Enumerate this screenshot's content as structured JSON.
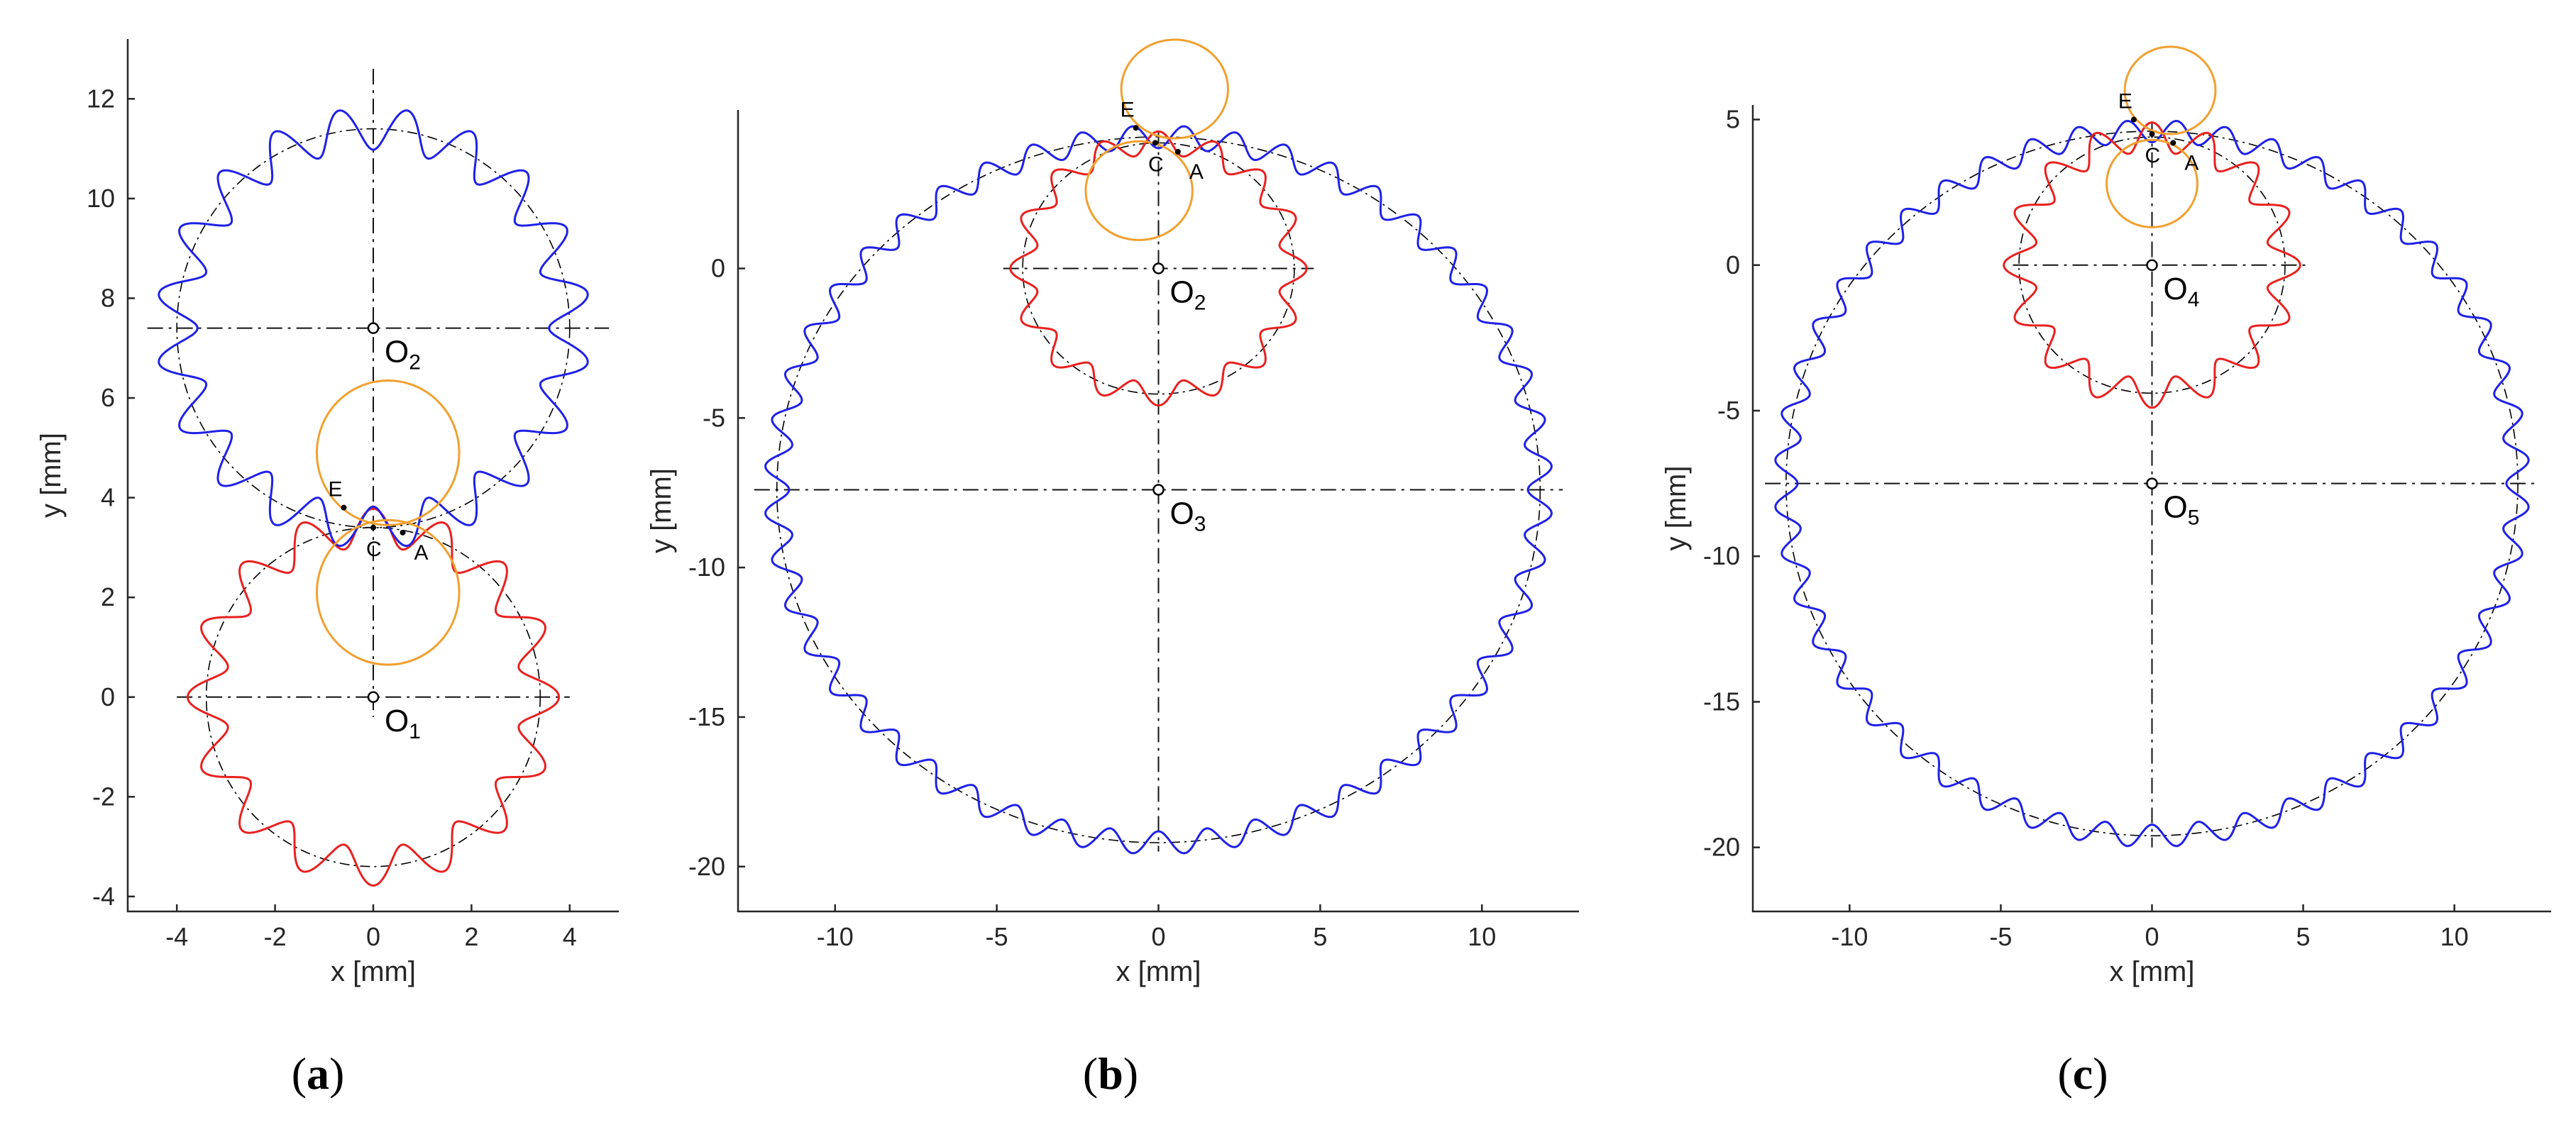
{
  "colors": {
    "driving": "#e8211f",
    "driven": "#1f21e6",
    "circle": "#f0a030",
    "axis": "#262626",
    "ref": "#000000"
  },
  "point_labels": {
    "E": "E",
    "C": "C",
    "A": "A"
  },
  "chart_data": [
    {
      "type": "scatter",
      "panel": "(a)",
      "panel_letter": "a",
      "xlabel": "x [mm]",
      "ylabel": "y [mm]",
      "xlim": [
        -5,
        5
      ],
      "ylim": [
        -4.3,
        13.2
      ],
      "xticks": [
        -4,
        -2,
        0,
        2,
        4
      ],
      "yticks": [
        -4,
        -2,
        0,
        2,
        4,
        6,
        8,
        10,
        12
      ],
      "gears": [
        {
          "name": "red gear",
          "color": "driving",
          "cx": 0,
          "cy": 0,
          "r": 3.4,
          "amp": 0.38,
          "teeth": 16,
          "phase": 0,
          "hole_x": [
            -4,
            4
          ]
        },
        {
          "name": "blue gear",
          "color": "driven",
          "cx": 0,
          "cy": 7.4,
          "r": 4.0,
          "amp": 0.42,
          "teeth": 20,
          "phase": 0.5,
          "hole_x": [
            -4.6,
            4.8
          ]
        }
      ],
      "centers": [
        {
          "main": "O",
          "sub": "1",
          "x": 0,
          "y": 0
        },
        {
          "main": "O",
          "sub": "2",
          "x": 0,
          "y": 7.4
        }
      ],
      "orange_circles": [
        {
          "cx": 0.3,
          "cy": 2.1,
          "r": 1.45
        },
        {
          "cx": 0.3,
          "cy": 4.9,
          "r": 1.45
        }
      ],
      "points": {
        "E": [
          -0.6,
          3.8
        ],
        "C": [
          0,
          3.4
        ],
        "A": [
          0.6,
          3.3
        ]
      },
      "v_axis_span": [
        -0.4,
        12.6
      ]
    },
    {
      "type": "scatter",
      "panel": "(b)",
      "panel_letter": "b",
      "xlabel": "x [mm]",
      "ylabel": "y [mm]",
      "xlim": [
        -13,
        13
      ],
      "ylim": [
        -21.5,
        5.3
      ],
      "xticks": [
        -10,
        -5,
        0,
        5,
        10
      ],
      "yticks": [
        -20,
        -15,
        -10,
        -5,
        0
      ],
      "gears": [
        {
          "name": "blue gear",
          "color": "driven",
          "cx": 0,
          "cy": -7.4,
          "r": 11.8,
          "amp": 0.38,
          "teeth": 48,
          "phase": 0.5,
          "hole_x": [
            -12.5,
            12.5
          ]
        },
        {
          "name": "red gear",
          "color": "driving",
          "cx": 0,
          "cy": 0,
          "r": 4.2,
          "amp": 0.38,
          "teeth": 16,
          "phase": 0,
          "hole_x": [
            -4.8,
            4.8
          ]
        }
      ],
      "centers": [
        {
          "main": "O",
          "sub": "2",
          "x": 0,
          "y": 0
        },
        {
          "main": "O",
          "sub": "3",
          "x": 0,
          "y": -7.4
        }
      ],
      "orange_circles": [
        {
          "cx": 0.5,
          "cy": 6.0,
          "r": 1.65
        },
        {
          "cx": -0.6,
          "cy": 2.6,
          "r": 1.65
        }
      ],
      "points": {
        "E": [
          -0.7,
          4.7
        ],
        "C": [
          -0.1,
          4.2
        ],
        "A": [
          0.6,
          3.9
        ]
      },
      "v_axis_span": [
        -19.5,
        4.6
      ]
    },
    {
      "type": "scatter",
      "panel": "(c)",
      "panel_letter": "c",
      "xlabel": "x [mm]",
      "ylabel": "y [mm]",
      "xlim": [
        -13.2,
        13.2
      ],
      "ylim": [
        -22.2,
        5.5
      ],
      "xticks": [
        -10,
        -5,
        0,
        5,
        10
      ],
      "yticks": [
        -20,
        -15,
        -10,
        -5,
        0,
        5
      ],
      "gears": [
        {
          "name": "blue gear",
          "color": "driven",
          "cx": 0,
          "cy": -7.5,
          "r": 12.1,
          "amp": 0.38,
          "teeth": 48,
          "phase": 0.5,
          "hole_x": [
            -12.8,
            12.8
          ]
        },
        {
          "name": "red gear",
          "color": "driving",
          "cx": 0,
          "cy": 0,
          "r": 4.4,
          "amp": 0.5,
          "teeth": 16,
          "phase": 0,
          "hole_x": [
            -4.6,
            5.2
          ]
        }
      ],
      "centers": [
        {
          "main": "O",
          "sub": "4",
          "x": 0,
          "y": 0
        },
        {
          "main": "O",
          "sub": "5",
          "x": 0,
          "y": -7.5
        }
      ],
      "orange_circles": [
        {
          "cx": 0.6,
          "cy": 6.0,
          "r": 1.5
        },
        {
          "cx": 0,
          "cy": 2.8,
          "r": 1.5
        }
      ],
      "points": {
        "E": [
          -0.6,
          5.0
        ],
        "C": [
          0,
          4.5
        ],
        "A": [
          0.7,
          4.2
        ]
      },
      "v_axis_span": [
        -20,
        4.9
      ]
    }
  ]
}
